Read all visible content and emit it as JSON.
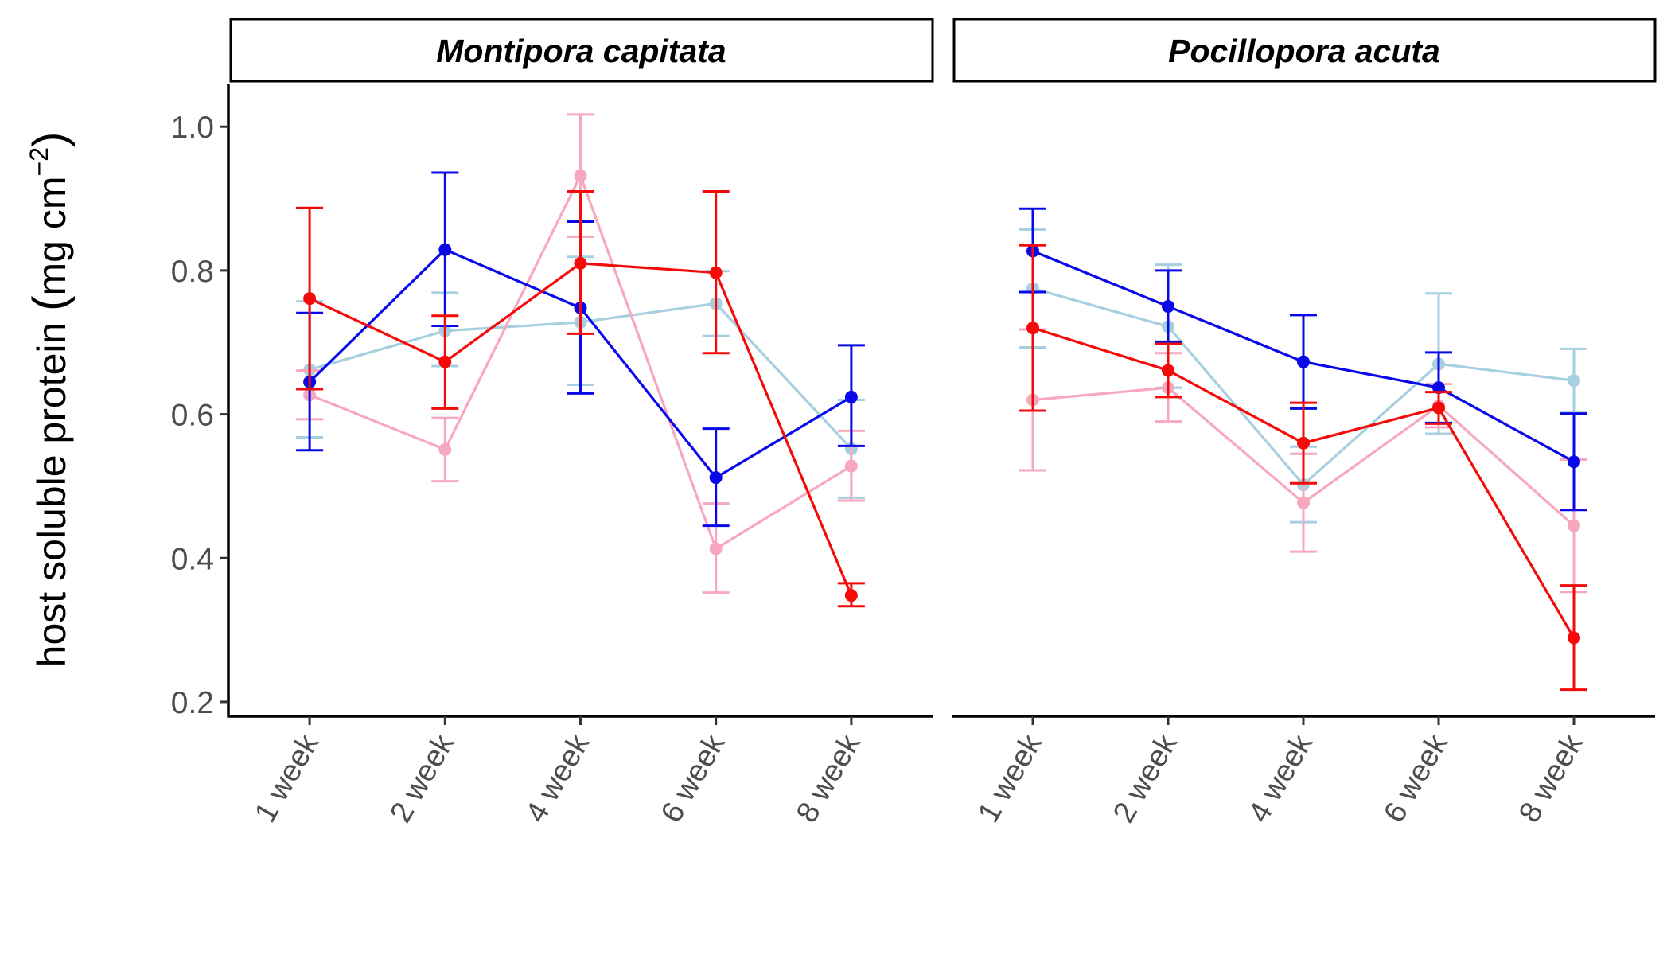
{
  "chart_data": {
    "type": "line",
    "ylabel": {
      "main": "host soluble protein",
      "unit": "mg cm",
      "exponent": "−2"
    },
    "ylim": [
      0.18,
      1.06
    ],
    "yticks": [
      "0.2",
      "0.4",
      "0.6",
      "0.8",
      "1.0"
    ],
    "categories": [
      "1 week",
      "2 week",
      "4 week",
      "6 week",
      "8 week"
    ],
    "error_bars": true,
    "grid": false,
    "legend": "none",
    "panels": [
      {
        "title": "Montipora capitata",
        "series": [
          {
            "color": "#a6cfe0",
            "values": [
              0.662,
              0.716,
              0.728,
              0.754,
              0.552
            ],
            "err_low": [
              0.568,
              0.667,
              0.641,
              0.709,
              0.484
            ],
            "err_high": [
              0.757,
              0.769,
              0.819,
              0.799,
              0.62
            ]
          },
          {
            "color": "#f7a8bf",
            "values": [
              0.627,
              0.551,
              0.932,
              0.413,
              0.528
            ],
            "err_low": [
              0.593,
              0.507,
              0.847,
              0.352,
              0.48
            ],
            "err_high": [
              0.661,
              0.595,
              1.017,
              0.476,
              0.577
            ]
          },
          {
            "color": "#0808e8",
            "values": [
              0.645,
              0.829,
              0.748,
              0.512,
              0.624
            ],
            "err_low": [
              0.55,
              0.723,
              0.629,
              0.445,
              0.556
            ],
            "err_high": [
              0.741,
              0.936,
              0.868,
              0.58,
              0.696
            ]
          },
          {
            "color": "#f50a0a",
            "values": [
              0.761,
              0.673,
              0.81,
              0.797,
              0.348
            ],
            "err_low": [
              0.635,
              0.608,
              0.712,
              0.685,
              0.333
            ],
            "err_high": [
              0.887,
              0.737,
              0.91,
              0.91,
              0.365
            ]
          }
        ]
      },
      {
        "title": "Pocillopora acuta",
        "series": [
          {
            "color": "#a6cfe0",
            "values": [
              0.775,
              0.722,
              0.502,
              0.67,
              0.647
            ],
            "err_low": [
              0.693,
              0.637,
              0.45,
              0.573,
              0.602
            ],
            "err_high": [
              0.857,
              0.808,
              0.555,
              0.768,
              0.691
            ]
          },
          {
            "color": "#f7a8bf",
            "values": [
              0.62,
              0.637,
              0.477,
              0.612,
              0.445
            ],
            "err_low": [
              0.522,
              0.59,
              0.409,
              0.582,
              0.353
            ],
            "err_high": [
              0.718,
              0.685,
              0.545,
              0.642,
              0.537
            ]
          },
          {
            "color": "#0808e8",
            "values": [
              0.827,
              0.75,
              0.673,
              0.637,
              0.534
            ],
            "err_low": [
              0.77,
              0.701,
              0.608,
              0.588,
              0.467
            ],
            "err_high": [
              0.886,
              0.8,
              0.738,
              0.686,
              0.601
            ]
          },
          {
            "color": "#f50a0a",
            "values": [
              0.72,
              0.661,
              0.56,
              0.609,
              0.289
            ],
            "err_low": [
              0.605,
              0.624,
              0.504,
              0.587,
              0.217
            ],
            "err_high": [
              0.835,
              0.698,
              0.616,
              0.631,
              0.362
            ]
          }
        ]
      }
    ]
  }
}
